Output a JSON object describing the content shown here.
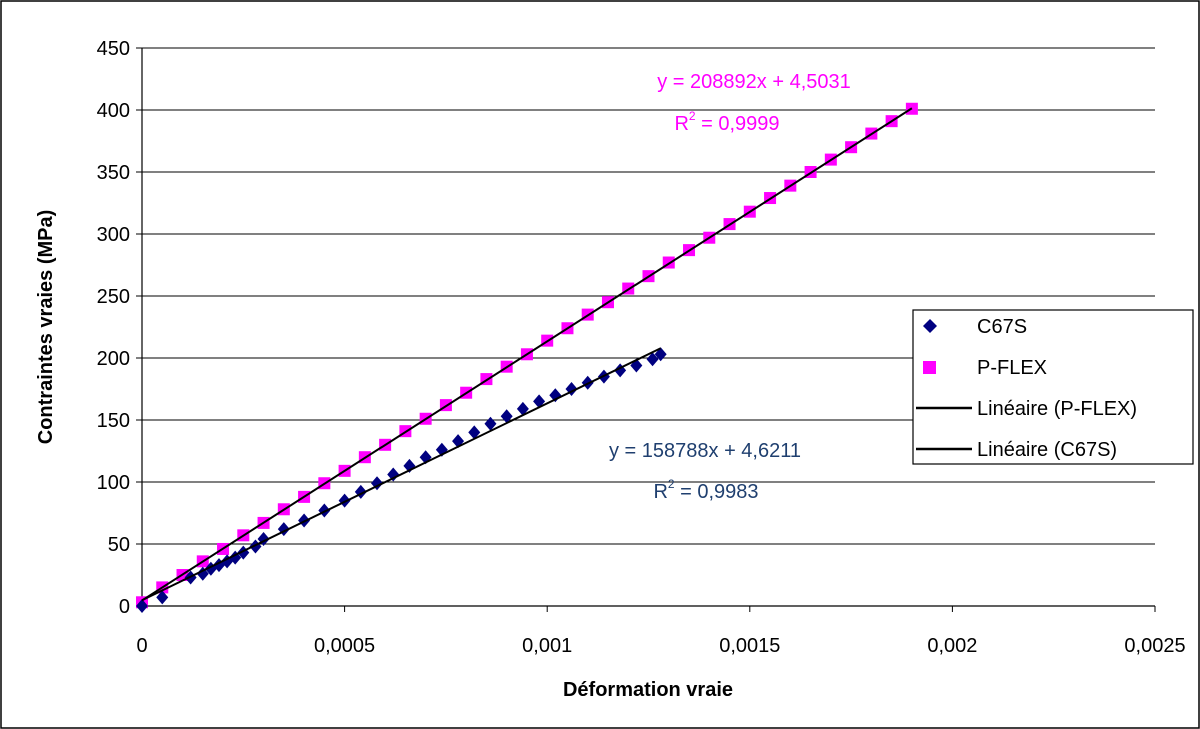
{
  "chart_data": {
    "type": "scatter",
    "xlabel": "Déformation vraie",
    "ylabel": "Contraintes vraies (MPa)",
    "xlim": [
      0,
      0.0025
    ],
    "ylim": [
      0,
      450
    ],
    "x_ticks": [
      "0",
      "0,0005",
      "0,001",
      "0,0015",
      "0,002",
      "0,0025"
    ],
    "x_tick_values": [
      0,
      0.0005,
      0.001,
      0.0015,
      0.002,
      0.0025
    ],
    "y_ticks": [
      "0",
      "50",
      "100",
      "150",
      "200",
      "250",
      "300",
      "350",
      "400",
      "450"
    ],
    "y_tick_values": [
      0,
      50,
      100,
      150,
      200,
      250,
      300,
      350,
      400,
      450
    ],
    "grid": "horizontal",
    "legend_position": "right",
    "series": [
      {
        "name": "C67S",
        "marker": "diamond",
        "color": "#000080",
        "x": [
          0,
          5e-05,
          0.00012,
          0.00015,
          0.00017,
          0.00019,
          0.00021,
          0.00023,
          0.00025,
          0.00028,
          0.0003,
          0.00035,
          0.0004,
          0.00045,
          0.0005,
          0.00054,
          0.00058,
          0.00062,
          0.00066,
          0.0007,
          0.00074,
          0.00078,
          0.00082,
          0.00086,
          0.0009,
          0.00094,
          0.00098,
          0.00102,
          0.00106,
          0.0011,
          0.00114,
          0.00118,
          0.00122,
          0.00126,
          0.00128
        ],
        "y": [
          0,
          7,
          23,
          26,
          30,
          33,
          36,
          39,
          43,
          48,
          54,
          62,
          69,
          77,
          85,
          92,
          99,
          106,
          113,
          120,
          126,
          133,
          140,
          147,
          153,
          159,
          165,
          170,
          175,
          180,
          185,
          190,
          194,
          199,
          203
        ]
      },
      {
        "name": "P-FLEX",
        "marker": "square",
        "color": "#FF00FF",
        "x": [
          0,
          5e-05,
          0.0001,
          0.00015,
          0.0002,
          0.00025,
          0.0003,
          0.00035,
          0.0004,
          0.00045,
          0.0005,
          0.00055,
          0.0006,
          0.00065,
          0.0007,
          0.00075,
          0.0008,
          0.00085,
          0.0009,
          0.00095,
          0.001,
          0.00105,
          0.0011,
          0.00115,
          0.0012,
          0.00125,
          0.0013,
          0.00135,
          0.0014,
          0.00145,
          0.0015,
          0.00155,
          0.0016,
          0.00165,
          0.0017,
          0.00175,
          0.0018,
          0.00185,
          0.0019
        ],
        "y": [
          3,
          15,
          25,
          36,
          46,
          57,
          67,
          78,
          88,
          99,
          109,
          120,
          130,
          141,
          151,
          162,
          172,
          183,
          193,
          203,
          214,
          224,
          235,
          245,
          256,
          266,
          277,
          287,
          297,
          308,
          318,
          329,
          339,
          350,
          360,
          370,
          381,
          391,
          401
        ]
      },
      {
        "name": "Linéaire (P-FLEX)",
        "type": "trendline",
        "slope": 208892,
        "intercept": 4.5031,
        "x_range": [
          0,
          0.0019
        ],
        "color": "#000000"
      },
      {
        "name": "Linéaire (C67S)",
        "type": "trendline",
        "slope": 158788,
        "intercept": 4.6211,
        "x_range": [
          0,
          0.00128
        ],
        "color": "#000000"
      }
    ],
    "annotations": [
      {
        "series": "P-FLEX",
        "equation": "y = 208892x + 4,5031",
        "r2_prefix": "R",
        "r2_exp": "2",
        "r2_value": " = 0,9999",
        "color": "#FF00FF"
      },
      {
        "series": "C67S",
        "equation": "y = 158788x + 4,6211",
        "r2_prefix": "R",
        "r2_exp": "2",
        "r2_value": " = 0,9983",
        "color": "#1F3F6F"
      }
    ]
  }
}
